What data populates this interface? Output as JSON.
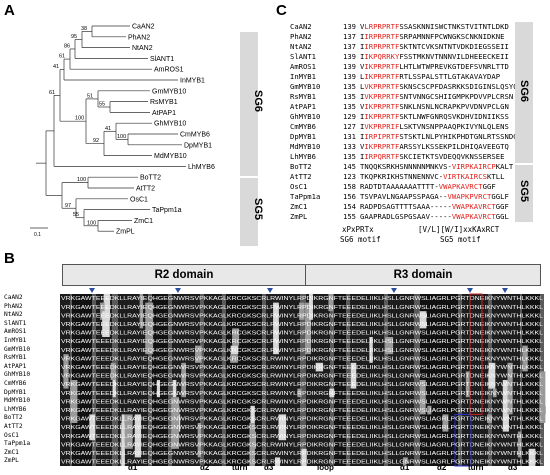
{
  "panels": {
    "a": "A",
    "b": "B",
    "c": "C"
  },
  "tree": {
    "taxa": [
      "CaAN2",
      "PhAN2",
      "NtAN2",
      "SlANT1",
      "AmROS1",
      "InMYB1",
      "GmMYB10",
      "RsMYB1",
      "AtPAP1",
      "GhMYB10",
      "CmMYB6",
      "DpMYB1",
      "MdMYB10",
      "LhMYB6",
      "BoTT2",
      "AtTT2",
      "OsC1",
      "TaPpm1a",
      "ZmC1",
      "ZmPL"
    ],
    "bootstrap": [
      "38",
      "95",
      "86",
      "61",
      "41",
      "55",
      "51",
      "100",
      "41",
      "92",
      "100",
      "61",
      "100",
      "100",
      "55",
      "97"
    ],
    "scale_label": "0.1",
    "groups": [
      "SG6",
      "SG5"
    ]
  },
  "alignment_c": {
    "rows": [
      {
        "name": "CaAN2",
        "num": "139",
        "pre": "V",
        "motif": "LRPRPRTF",
        "post": "SSASKNNISWCTNKSTVITNTLDKD"
      },
      {
        "name": "PhAN2",
        "num": "137",
        "pre": "I",
        "motif": "IRPRPRTF",
        "post": "SRPAMNNFPCWNGKSCNKNIDKNE"
      },
      {
        "name": "NtAN2",
        "num": "137",
        "pre": "I",
        "motif": "IRPRPRTF",
        "post": "SKTNTCVKSNTNTVDKDIEGSSEII"
      },
      {
        "name": "SlANT1",
        "num": "139",
        "pre": "I",
        "motif": "IKPQRRKY",
        "post": "FSSTMKNVTNNNVILDHEEECKEII"
      },
      {
        "name": "AmROS1",
        "num": "139",
        "pre": "V",
        "motif": "IKPRPRTF",
        "post": "LHTLWTWPREVKGTDEFSVNRLTTD"
      },
      {
        "name": "InMYB1",
        "num": "139",
        "pre": "L",
        "motif": "IKPRPRTF",
        "post": "RTLSSPALSTTLGTAKAVAYDAP"
      },
      {
        "name": "GmMYB10",
        "num": "135",
        "pre": "L",
        "motif": "VKPRPRTF",
        "post": "SKNSCSCPFDASRKKSDIGINSLQSYQ"
      },
      {
        "name": "RsMYB1",
        "num": "135",
        "pre": "I",
        "motif": "VKPRPRTF",
        "post": "SNTVNNGCSHIIGMPKPDVVPLCRSN"
      },
      {
        "name": "AtPAP1",
        "num": "135",
        "pre": "V",
        "motif": "IKPRPRTF",
        "post": "SNKLNSNLNCRAPKPVVDNVPCLGN"
      },
      {
        "name": "GhMYB10",
        "num": "129",
        "pre": "I",
        "motif": "IKPRPRTF",
        "post": "SKTLNWFGNRQSVKDHVIDNIIKSS"
      },
      {
        "name": "CmMYB6",
        "num": "127",
        "pre": "I",
        "motif": "VKPRPRIF",
        "post": "LSKTVNSNPPAAQPKIVYNLQLENS"
      },
      {
        "name": "DpMYB1",
        "num": "131",
        "pre": "I",
        "motif": "IRPIPRTF",
        "post": "STSKTLNLPYHIKPHDTGNLRTSSNDG"
      },
      {
        "name": "MdMYB10",
        "num": "133",
        "pre": "V",
        "motif": "IKPRPRTF",
        "post": "ARSSYLKSSEKPILDHIQAVEEGTQ"
      },
      {
        "name": "LhMYB6",
        "num": "135",
        "pre": "I",
        "motif": "IRPQRRTF",
        "post": "SKCIETKTSVDEQQVKNSSERSEE"
      },
      {
        "name": "BoTT2",
        "num": "145",
        "pre": "",
        "motif": "",
        "post": "TNQQKSRKHSNNNNNMNKVS-VIRPKAIRCPKALT"
      },
      {
        "name": "AtTT2",
        "num": "123",
        "pre": "",
        "motif": "",
        "post": "TKQPKRIKHSTNNENNVC-VIRTKAIRCSKTLL"
      },
      {
        "name": "OsC1",
        "num": "158",
        "pre": "",
        "motif": "",
        "post": "RADTDTAAAAAAATTTT-VWAPKAVRCTGGF"
      },
      {
        "name": "TaPpm1a",
        "num": "156",
        "pre": "",
        "motif": "",
        "post": "TSVPAVLNGAAPSSPAGA--VWAPKPVRCTGGLF"
      },
      {
        "name": "ZmC1",
        "num": "154",
        "pre": "",
        "motif": "",
        "post": "RADPDSAGTTTTSAAA-----VWAPKAVRCTGGF"
      },
      {
        "name": "ZmPL",
        "num": "155",
        "pre": "",
        "motif": "",
        "post": "GAAPRADLGSPGSAAV-----VWAPKAVRCTGGL"
      }
    ],
    "sg6_motif_seq": "xPxPRTx",
    "sg6_motif_label": "SG6 motif",
    "sg5_motif_seq": "[V/L][W/I]xxKAxRCT",
    "sg5_motif_label": "SG5 motif"
  },
  "alignment_b": {
    "domain_r2": "R2 domain",
    "domain_r3": "R3 domain",
    "structure_labels": [
      "α1",
      "α2",
      "turn",
      "α3",
      "loop",
      "α1",
      "α2",
      "turn",
      "α3"
    ]
  },
  "colors": {
    "motif_red": "#e0201c",
    "sg_bar": "#d9d9d9"
  }
}
